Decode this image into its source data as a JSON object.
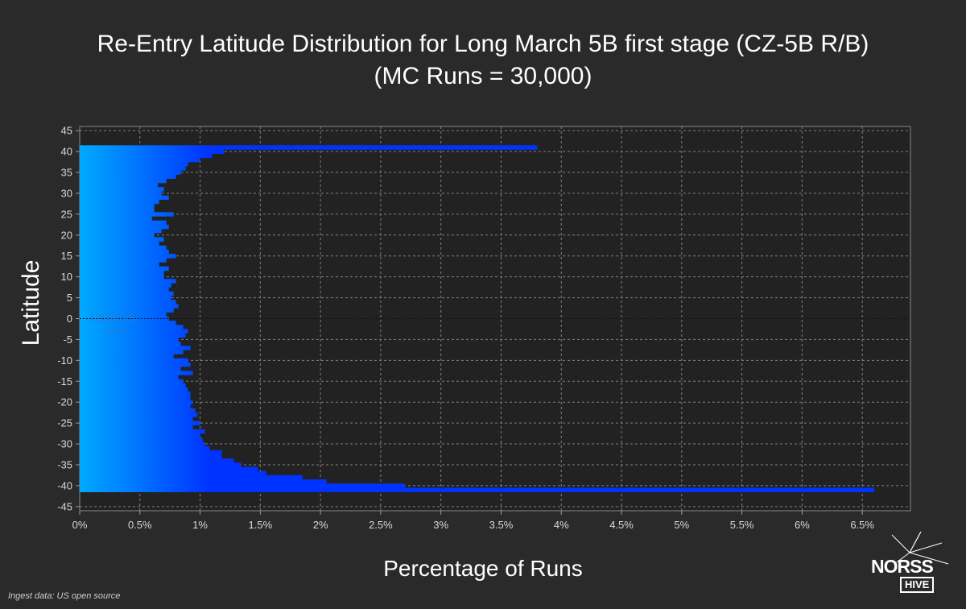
{
  "chart_data": {
    "type": "bar",
    "orientation": "horizontal",
    "title_line1": "Re-Entry Latitude Distribution for  Long March 5B first stage (CZ-5B R/B)",
    "title_line2": "(MC Runs = 30,000)",
    "xlabel": "Percentage of Runs",
    "ylabel": "Latitude",
    "xlim": [
      0,
      6.9
    ],
    "ylim": [
      -46,
      46
    ],
    "x_ticks": [
      {
        "value": 0,
        "label": "0%"
      },
      {
        "value": 0.5,
        "label": "0.5%"
      },
      {
        "value": 1,
        "label": "1%"
      },
      {
        "value": 1.5,
        "label": "1.5%"
      },
      {
        "value": 2,
        "label": "2%"
      },
      {
        "value": 2.5,
        "label": "2.5%"
      },
      {
        "value": 3,
        "label": "3%"
      },
      {
        "value": 3.5,
        "label": "3.5%"
      },
      {
        "value": 4,
        "label": "4%"
      },
      {
        "value": 4.5,
        "label": "4.5%"
      },
      {
        "value": 5,
        "label": "5%"
      },
      {
        "value": 5.5,
        "label": "5.5%"
      },
      {
        "value": 6,
        "label": "6%"
      },
      {
        "value": 6.5,
        "label": "6.5%"
      }
    ],
    "y_ticks": [
      {
        "value": 45,
        "label": "45"
      },
      {
        "value": 40,
        "label": "40"
      },
      {
        "value": 35,
        "label": "35"
      },
      {
        "value": 30,
        "label": "30"
      },
      {
        "value": 25,
        "label": "25"
      },
      {
        "value": 20,
        "label": "20"
      },
      {
        "value": 15,
        "label": "15"
      },
      {
        "value": 10,
        "label": "10"
      },
      {
        "value": 5,
        "label": "5"
      },
      {
        "value": 0,
        "label": "0"
      },
      {
        "value": -5,
        "label": "-5"
      },
      {
        "value": -10,
        "label": "-10"
      },
      {
        "value": -15,
        "label": "-15"
      },
      {
        "value": -20,
        "label": "-20"
      },
      {
        "value": -25,
        "label": "-25"
      },
      {
        "value": -30,
        "label": "-30"
      },
      {
        "value": -35,
        "label": "-35"
      },
      {
        "value": -40,
        "label": "-40"
      },
      {
        "value": -45,
        "label": "-45"
      }
    ],
    "bin_width": 1,
    "latitudes": [
      41,
      40,
      39,
      38,
      37,
      36,
      35,
      34,
      33,
      32,
      31,
      30,
      29,
      28,
      27,
      26,
      25,
      24,
      23,
      22,
      21,
      20,
      19,
      18,
      17,
      16,
      15,
      14,
      13,
      12,
      11,
      10,
      9,
      8,
      7,
      6,
      5,
      4,
      3,
      2,
      1,
      0,
      -1,
      -2,
      -3,
      -4,
      -5,
      -6,
      -7,
      -8,
      -9,
      -10,
      -11,
      -12,
      -13,
      -14,
      -15,
      -16,
      -17,
      -18,
      -19,
      -20,
      -21,
      -22,
      -23,
      -24,
      -25,
      -26,
      -27,
      -28,
      -29,
      -30,
      -31,
      -32,
      -33,
      -34,
      -35,
      -36,
      -37,
      -38,
      -39,
      -40,
      -41
    ],
    "values": [
      3.8,
      1.2,
      1.1,
      1.0,
      0.9,
      0.88,
      0.84,
      0.8,
      0.72,
      0.65,
      0.7,
      0.68,
      0.74,
      0.66,
      0.62,
      0.62,
      0.78,
      0.6,
      0.72,
      0.74,
      0.68,
      0.62,
      0.7,
      0.66,
      0.72,
      0.74,
      0.8,
      0.72,
      0.66,
      0.74,
      0.7,
      0.7,
      0.8,
      0.76,
      0.74,
      0.78,
      0.76,
      0.8,
      0.82,
      0.78,
      0.72,
      0.74,
      0.8,
      0.86,
      0.9,
      0.88,
      0.82,
      0.84,
      0.92,
      0.86,
      0.78,
      0.9,
      0.92,
      0.84,
      0.94,
      0.82,
      0.86,
      0.88,
      0.9,
      0.92,
      0.92,
      0.94,
      0.92,
      0.96,
      0.98,
      0.94,
      1.0,
      0.94,
      1.04,
      1.0,
      1.02,
      1.04,
      1.08,
      1.18,
      1.18,
      1.28,
      1.34,
      1.48,
      1.55,
      1.85,
      2.05,
      2.7,
      6.6
    ],
    "colors": {
      "bar_light": "#00aaff",
      "bar_dark": "#0033ff",
      "background": "#2b2a2b",
      "plot_background": "#222222",
      "grid": "#808080",
      "zero_line": "#111111"
    },
    "grid": true,
    "legend": "none"
  },
  "watermark": {
    "top": "NORSS",
    "bottom": "HIVE"
  },
  "footnote": "Ingest data: US open source",
  "logo": {
    "top": "NORSS",
    "bottom": "HIVE"
  }
}
